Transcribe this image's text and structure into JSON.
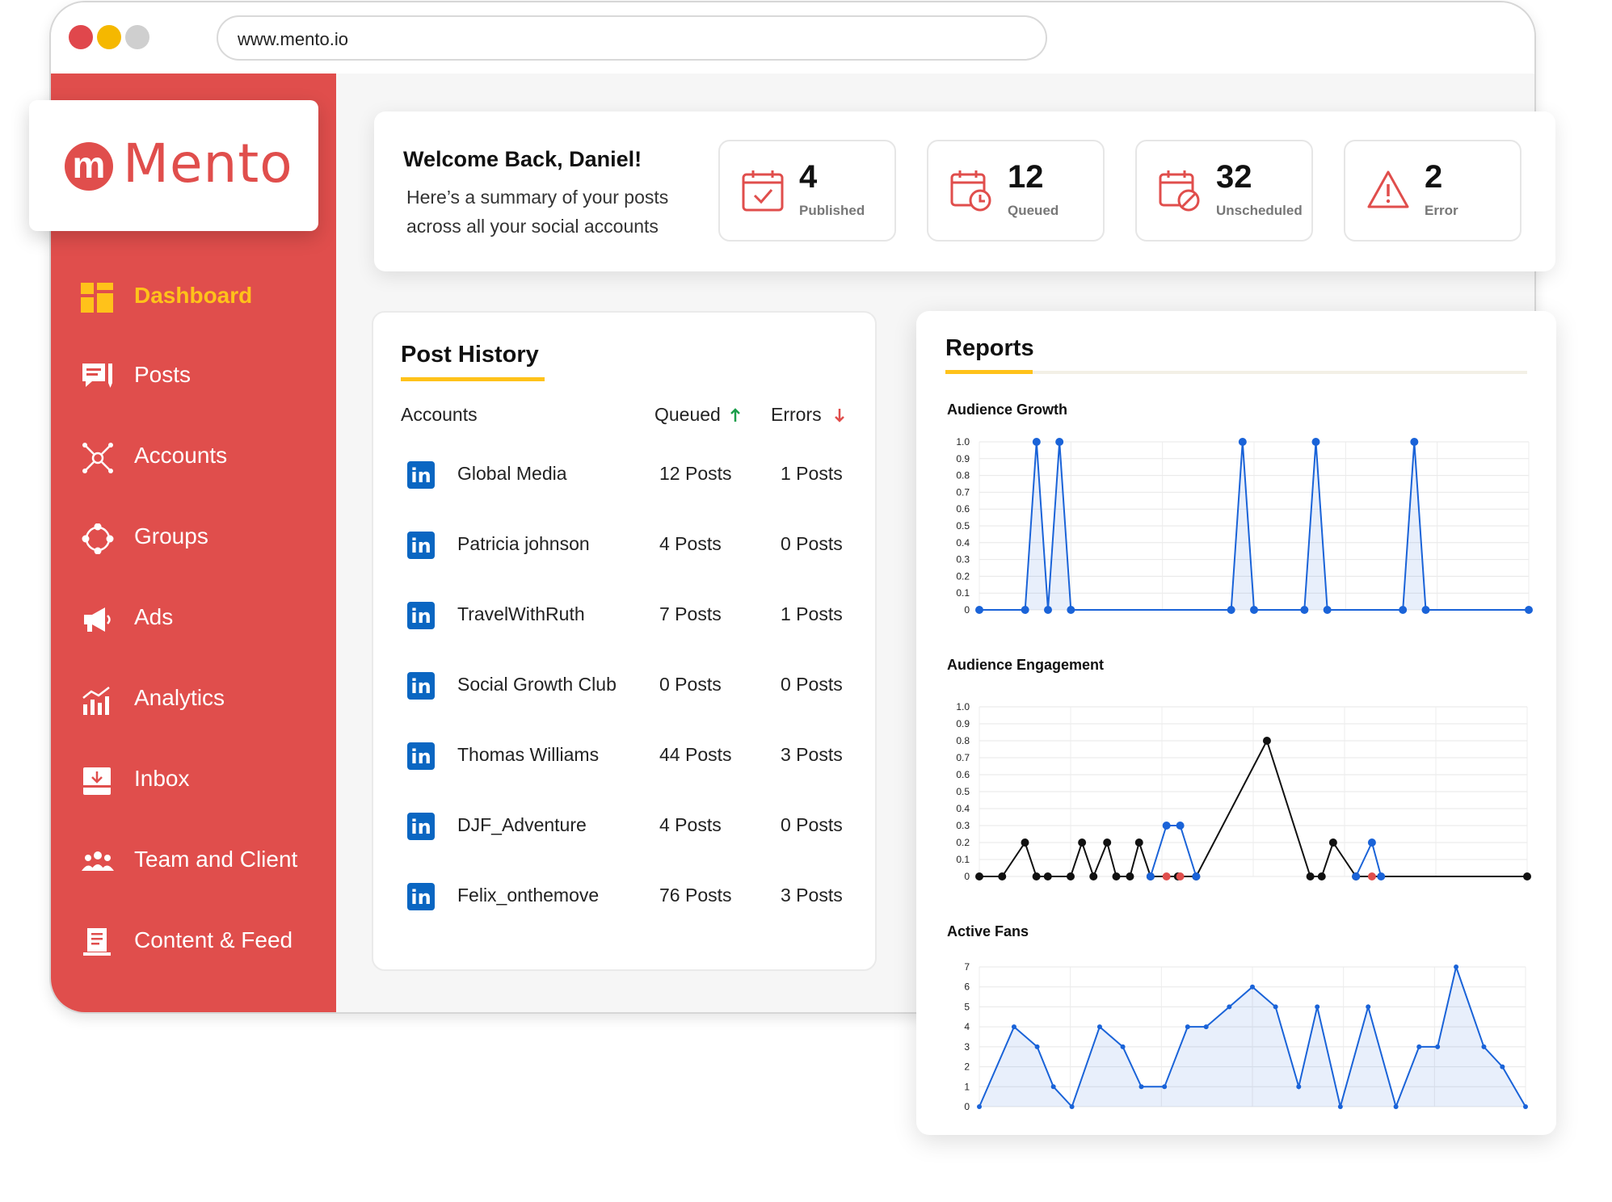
{
  "browser": {
    "url": "www.mento.io"
  },
  "brand": {
    "mark": "m",
    "name": "Mento",
    "color": "#e04e4c",
    "accent": "#ffc21a"
  },
  "sidebar": {
    "items": [
      {
        "label": "Dashboard",
        "icon": "dashboard-icon",
        "active": true
      },
      {
        "label": "Posts",
        "icon": "posts-icon"
      },
      {
        "label": "Accounts",
        "icon": "accounts-icon"
      },
      {
        "label": "Groups",
        "icon": "groups-icon"
      },
      {
        "label": "Ads",
        "icon": "megaphone-icon"
      },
      {
        "label": "Analytics",
        "icon": "analytics-icon"
      },
      {
        "label": "Inbox",
        "icon": "inbox-icon"
      },
      {
        "label": "Team and Client",
        "icon": "team-icon"
      },
      {
        "label": "Content & Feed",
        "icon": "content-feed-icon"
      }
    ]
  },
  "welcome": {
    "title": "Welcome Back, Daniel!",
    "subtitle": "Here’s a summary of your posts across all your social accounts"
  },
  "stats": [
    {
      "value": "4",
      "label": "Published",
      "icon": "calendar-check-icon"
    },
    {
      "value": "12",
      "label": "Queued",
      "icon": "calendar-clock-icon"
    },
    {
      "value": "32",
      "label": "Unscheduled",
      "icon": "calendar-blocked-icon"
    },
    {
      "value": "2",
      "label": "Error",
      "icon": "warning-icon"
    }
  ],
  "post_history": {
    "title": "Post History",
    "columns": {
      "accounts": "Accounts",
      "queued": "Queued",
      "errors": "Errors"
    },
    "network_badge": "in",
    "rows": [
      {
        "name": "Global Media",
        "queued": "12 Posts",
        "errors": "1 Posts"
      },
      {
        "name": "Patricia johnson",
        "queued": "4 Posts",
        "errors": "0 Posts"
      },
      {
        "name": "TravelWithRuth",
        "queued": "7 Posts",
        "errors": "1 Posts"
      },
      {
        "name": "Social Growth Club",
        "queued": "0 Posts",
        "errors": "0 Posts"
      },
      {
        "name": "Thomas Williams",
        "queued": "44 Posts",
        "errors": "3 Posts"
      },
      {
        "name": "DJF_Adventure",
        "queued": "4 Posts",
        "errors": "0 Posts"
      },
      {
        "name": "Felix_onthemove",
        "queued": "76 Posts",
        "errors": "3 Posts"
      }
    ]
  },
  "reports": {
    "title": "Reports"
  },
  "chart_data": [
    {
      "type": "line",
      "title": "Audience Growth",
      "ylim": [
        0,
        1
      ],
      "yticks": [
        "1.0",
        "0.9",
        "0.8",
        "0.7",
        "0.6",
        "0.5",
        "0.4",
        "0.3",
        "0.2",
        "0.1",
        "0"
      ],
      "grid": true,
      "color": "#1a63d8",
      "area": true,
      "x": [
        0,
        2.0,
        2.5,
        3.0,
        3.5,
        4.0,
        11.0,
        11.5,
        12.0,
        14.2,
        14.7,
        15.2,
        18.5,
        19.0,
        19.5,
        24.0
      ],
      "values": [
        0,
        0,
        1,
        0,
        1,
        0,
        0,
        1,
        0,
        0,
        1,
        0,
        0,
        1,
        0,
        0
      ]
    },
    {
      "type": "line",
      "title": "Audience Engagement",
      "ylim": [
        0,
        1
      ],
      "yticks": [
        "1.0",
        "0.9",
        "0.8",
        "0.7",
        "0.6",
        "0.5",
        "0.4",
        "0.3",
        "0.2",
        "0.1",
        "0"
      ],
      "grid": true,
      "series": [
        {
          "color": "#111111",
          "x": [
            0,
            1,
            2,
            2.5,
            3,
            4,
            4.5,
            5,
            5.6,
            6,
            6.6,
            7,
            7.5,
            8.7,
            9.5,
            12.6,
            14.5,
            15,
            15.5,
            16.5,
            24
          ],
          "values": [
            0,
            0,
            0.2,
            0,
            0,
            0,
            0.2,
            0,
            0.2,
            0,
            0,
            0.2,
            0,
            0,
            0,
            0.8,
            0,
            0,
            0.2,
            0,
            0
          ]
        },
        {
          "color": "#1a63d8",
          "x": [
            7.5,
            8.2,
            8.8,
            9.5
          ],
          "values": [
            0,
            0.3,
            0.3,
            0
          ]
        },
        {
          "color": "#1a63d8",
          "x": [
            16.5,
            17.2,
            17.6
          ],
          "values": [
            0,
            0.2,
            0
          ]
        },
        {
          "color": "#e04e4c",
          "points": true,
          "x": [
            8.2,
            8.8,
            17.2
          ],
          "values": [
            0,
            0,
            0
          ]
        }
      ]
    },
    {
      "type": "area",
      "title": "Active Fans",
      "ylim": [
        0,
        7
      ],
      "yticks": [
        "7",
        "6",
        "5",
        "4",
        "3",
        "2",
        "1",
        "0"
      ],
      "grid": true,
      "color": "#1a63d8",
      "x": [
        0,
        1.5,
        2.5,
        3.2,
        4,
        5.2,
        6.2,
        7,
        8,
        9,
        9.8,
        10.8,
        11.8,
        12.8,
        13.8,
        14.6,
        15.6,
        16.8,
        18,
        19,
        19.8,
        20.6,
        21.8,
        22.6,
        23.6
      ],
      "values": [
        0,
        4,
        3,
        1,
        0,
        4,
        3,
        1,
        1,
        4,
        4,
        5,
        6,
        5,
        1,
        5,
        0,
        5,
        0,
        3,
        3,
        7,
        3,
        2,
        0
      ]
    }
  ]
}
